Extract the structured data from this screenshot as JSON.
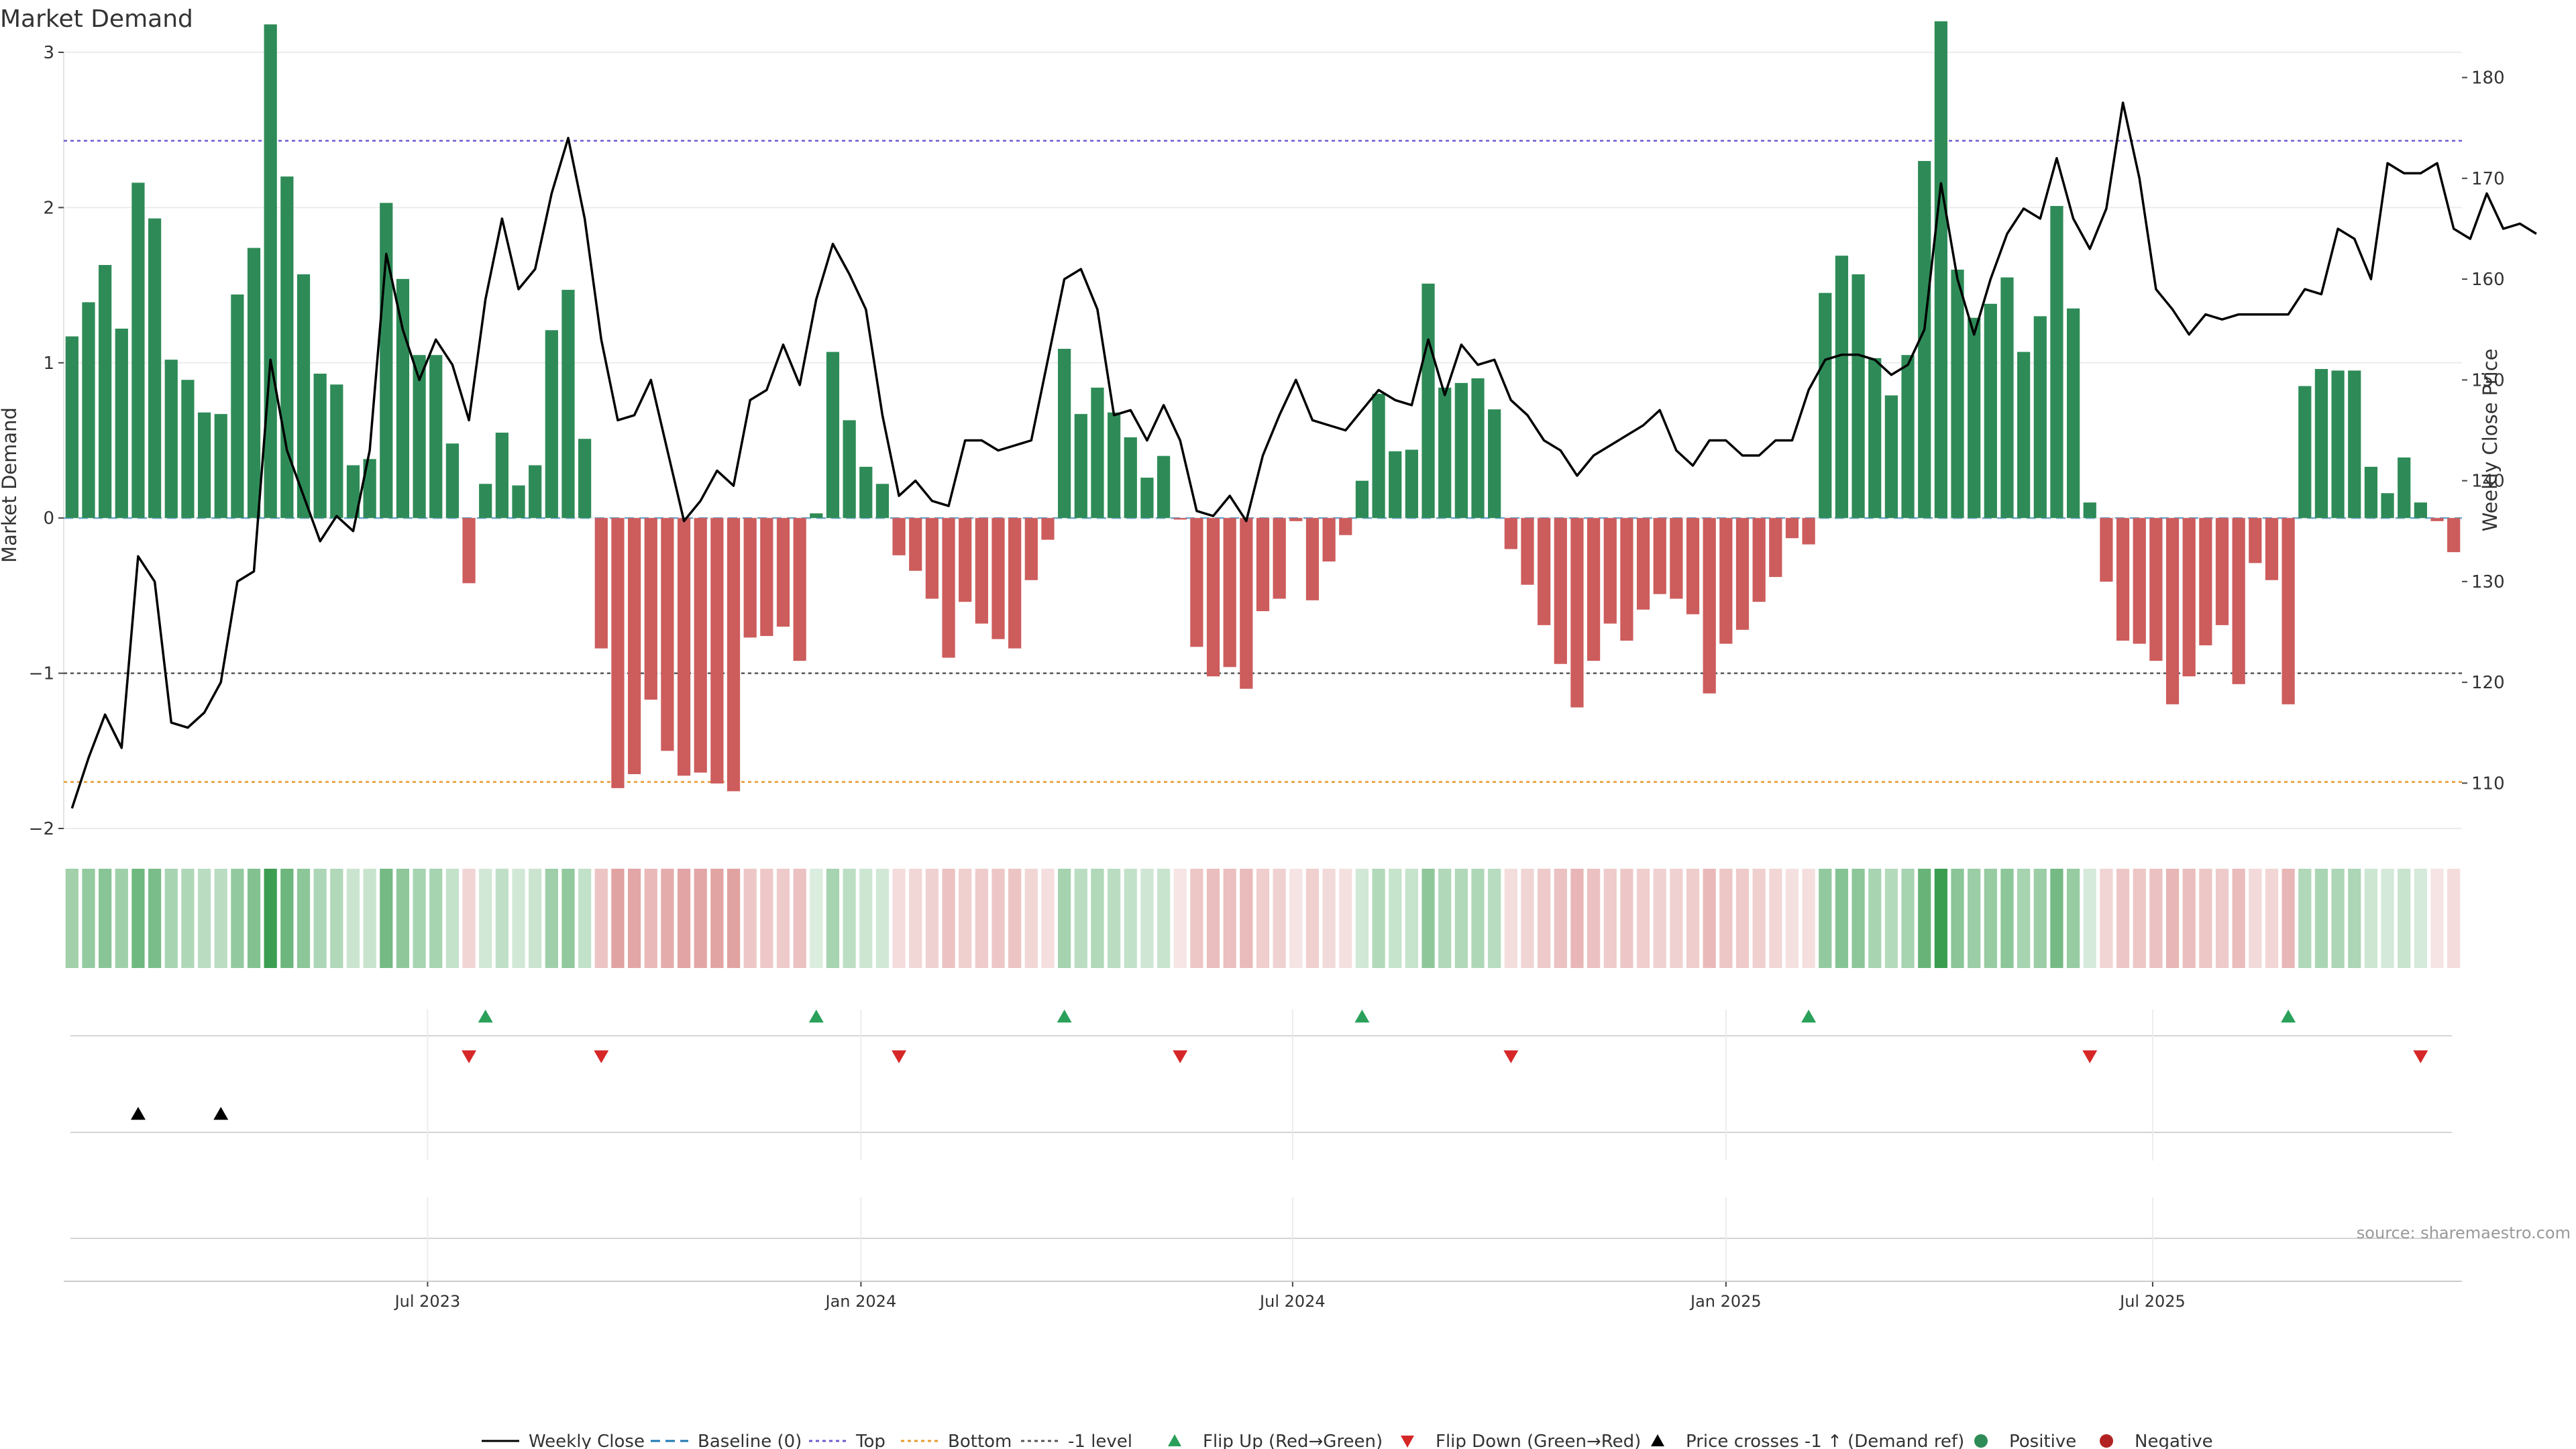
{
  "title": "Market Demand",
  "source": "source: sharemaestro.com",
  "colors": {
    "positive": "#2e8b57",
    "negative": "#cd5c5c",
    "price": "#000000",
    "top_line": "#6a5acd",
    "bottom_line": "#e69a2e",
    "minus1_line": "#555555",
    "baseline": "#1f77b4",
    "flip_up": "#2aa05a",
    "flip_down": "#d62728",
    "cross": "#000000",
    "strip_pos": "#3a9d50",
    "strip_neg": "#d06b6b"
  },
  "chart_data": {
    "type": "bar",
    "title": "Market Demand",
    "ylabel": "Market Demand",
    "y2label": "Weekly Close Price",
    "ylim": [
      -2.0,
      3.0
    ],
    "y2lim": [
      105.5,
      182.5
    ],
    "yticks": [
      -2,
      -1,
      0,
      1,
      2,
      3
    ],
    "ytick_labels": [
      "−2",
      "−1",
      "0",
      "1",
      "2",
      "3"
    ],
    "y2ticks": [
      110,
      120,
      130,
      140,
      150,
      160,
      170,
      180
    ],
    "y2tick_labels": [
      "110",
      "120",
      "130",
      "140",
      "150",
      "160",
      "170",
      "180"
    ],
    "xtick_labels": [
      "Jul 2023",
      "Jan 2024",
      "Jul 2024",
      "Jan 2025",
      "Jul 2025"
    ],
    "xtick_index": [
      22,
      48.2,
      74.3,
      100.5,
      126.3
    ],
    "levels": {
      "top": 2.43,
      "bottom": -1.7,
      "minus1": -1.0,
      "baseline": 0
    },
    "demand": [
      1.17,
      1.39,
      1.63,
      1.22,
      2.16,
      1.93,
      1.02,
      0.89,
      0.68,
      0.67,
      1.44,
      1.74,
      3.18,
      2.2,
      1.57,
      0.93,
      0.86,
      0.34,
      0.38,
      2.03,
      1.54,
      1.05,
      1.05,
      0.48,
      -0.42,
      0.22,
      0.55,
      0.21,
      0.34,
      1.21,
      1.47,
      0.51,
      -0.84,
      -1.74,
      -1.65,
      -1.17,
      -1.5,
      -1.66,
      -1.64,
      -1.71,
      -1.76,
      -0.77,
      -0.76,
      -0.7,
      -0.92,
      0.03,
      1.07,
      0.63,
      0.33,
      0.22,
      -0.24,
      -0.34,
      -0.52,
      -0.9,
      -0.54,
      -0.68,
      -0.78,
      -0.84,
      -0.4,
      -0.14,
      1.09,
      0.67,
      0.84,
      0.68,
      0.52,
      0.26,
      0.4,
      -0.01,
      -0.83,
      -1.02,
      -0.96,
      -1.1,
      -0.6,
      -0.52,
      -0.02,
      -0.53,
      -0.28,
      -0.11,
      0.24,
      0.8,
      0.43,
      0.44,
      1.51,
      0.84,
      0.87,
      0.9,
      0.7,
      -0.2,
      -0.43,
      -0.69,
      -0.94,
      -1.22,
      -0.92,
      -0.68,
      -0.79,
      -0.59,
      -0.49,
      -0.52,
      -0.62,
      -1.13,
      -0.81,
      -0.72,
      -0.54,
      -0.38,
      -0.13,
      -0.17,
      1.45,
      1.69,
      1.57,
      1.03,
      0.79,
      1.05,
      2.3,
      3.2,
      1.6,
      1.29,
      1.38,
      1.55,
      1.07,
      1.3,
      2.01,
      1.35,
      0.1,
      -0.41,
      -0.79,
      -0.81,
      -0.92,
      -1.2,
      -1.02,
      -0.82,
      -0.69,
      -1.07,
      -0.29,
      -0.4,
      -1.2,
      0.85,
      0.96,
      0.95,
      0.95,
      0.33,
      0.16,
      0.39,
      0.1,
      -0.02,
      -0.22
    ],
    "price": [
      107.5,
      112.5,
      116.8,
      113.5,
      132.5,
      130.0,
      116.0,
      115.5,
      117.0,
      120.0,
      130.0,
      131.0,
      152.0,
      143.0,
      138.5,
      134.0,
      136.5,
      135.0,
      143.0,
      162.5,
      155.0,
      150.0,
      154.0,
      151.5,
      146.0,
      158.0,
      166.0,
      159.0,
      161.0,
      168.5,
      174.0,
      166.0,
      154.0,
      146.0,
      146.5,
      150.0,
      143.0,
      136.0,
      138.0,
      141.0,
      139.5,
      148.0,
      149.0,
      153.5,
      149.5,
      158.0,
      163.5,
      160.5,
      157.0,
      146.5,
      138.5,
      140.0,
      138.0,
      137.5,
      144.0,
      144.0,
      143.0,
      143.5,
      144.0,
      152.0,
      160.0,
      161.0,
      157.0,
      146.5,
      147.0,
      144.0,
      147.5,
      144.0,
      137.0,
      136.5,
      138.5,
      136.0,
      142.5,
      146.5,
      150.0,
      146.0,
      145.5,
      145.0,
      147.0,
      149.0,
      148.0,
      147.5,
      154.0,
      148.5,
      153.5,
      151.5,
      152.0,
      148.0,
      146.5,
      144.0,
      143.0,
      140.5,
      142.5,
      143.5,
      144.5,
      145.5,
      147.0,
      143.0,
      141.5,
      144.0,
      144.0,
      142.5,
      142.5,
      144.0,
      144.0,
      149.0,
      152.0,
      152.5,
      152.5,
      152.0,
      150.5,
      151.5,
      155.0,
      169.5,
      160.0,
      154.5,
      160.0,
      164.5,
      167.0,
      166.0,
      172.0,
      166.0,
      163.0,
      167.0,
      177.5,
      170.0,
      159.0,
      157.0,
      154.5,
      156.5,
      156.0,
      156.5,
      156.5,
      156.5,
      156.5,
      159.0,
      158.5,
      165.0,
      164.0,
      160.0,
      171.5,
      170.5,
      170.5,
      171.5,
      165.0,
      164.0,
      168.5,
      165.0,
      165.5,
      164.5
    ],
    "flip_up_index": [
      25,
      45,
      60,
      78,
      105,
      134
    ],
    "flip_down_index": [
      24,
      32,
      50,
      67,
      87,
      122,
      142
    ],
    "cross_up_index": [
      4,
      9
    ]
  },
  "legend": [
    {
      "label": "Weekly Close",
      "kind": "line-solid",
      "color": "#000000"
    },
    {
      "label": "Baseline (0)",
      "kind": "line-dash",
      "color": "#1f77b4"
    },
    {
      "label": "Top",
      "kind": "line-dot",
      "color": "#6a5acd"
    },
    {
      "label": "Bottom",
      "kind": "line-dot",
      "color": "#e69a2e"
    },
    {
      "label": "-1 level",
      "kind": "line-dot",
      "color": "#555555"
    },
    {
      "label": "Flip Up (Red→Green)",
      "kind": "tri-up",
      "color": "#2aa05a"
    },
    {
      "label": "Flip Down (Green→Red)",
      "kind": "tri-down",
      "color": "#d62728"
    },
    {
      "label": "Price crosses -1 ↑ (Demand ref)",
      "kind": "tri-up",
      "color": "#000000"
    },
    {
      "label": "Positive",
      "kind": "dot",
      "color": "#2e8b57"
    },
    {
      "label": "Negative",
      "kind": "dot",
      "color": "#b22222"
    }
  ]
}
